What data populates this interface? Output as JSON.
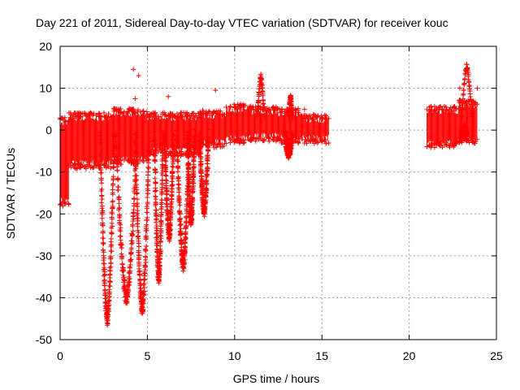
{
  "chart_data": {
    "type": "scatter",
    "title": "Day 221 of 2011, Sidereal Day-to-day VTEC variation (SDTVAR) for receiver kouc",
    "xlabel": "GPS time / hours",
    "ylabel": "SDTVAR / TECUs",
    "xlim": [
      0,
      25
    ],
    "ylim": [
      -50,
      20
    ],
    "xticks": [
      "0",
      "5",
      "10",
      "15",
      "20",
      "25"
    ],
    "yticks": [
      "-50",
      "-40",
      "-30",
      "-20",
      "-10",
      "0",
      "10",
      "20"
    ],
    "xtick_values": [
      0,
      5,
      10,
      15,
      20,
      25
    ],
    "ytick_values": [
      -50,
      -40,
      -30,
      -20,
      -10,
      0,
      10,
      20
    ],
    "grid": true,
    "marker": "+",
    "color": "#ff0000",
    "bands": [
      {
        "x0": 0.0,
        "x1": 0.5,
        "lo": -17,
        "hi": 2
      },
      {
        "x0": 0.5,
        "x1": 3.0,
        "lo": -8,
        "hi": 3
      },
      {
        "x0": 3.0,
        "x1": 5.0,
        "lo": -7,
        "hi": 4
      },
      {
        "x0": 5.0,
        "x1": 8.0,
        "lo": -5,
        "hi": 3
      },
      {
        "x0": 8.0,
        "x1": 9.5,
        "lo": -3,
        "hi": 3.5
      },
      {
        "x0": 9.5,
        "x1": 11.0,
        "lo": -2,
        "hi": 5
      },
      {
        "x0": 11.0,
        "x1": 12.5,
        "lo": -1.5,
        "hi": 4.5
      },
      {
        "x0": 12.5,
        "x1": 14.0,
        "lo": -2,
        "hi": 4
      },
      {
        "x0": 14.0,
        "x1": 15.4,
        "lo": -2,
        "hi": 2.5
      },
      {
        "x0": 21.0,
        "x1": 22.8,
        "lo": -3,
        "hi": 4.5
      },
      {
        "x0": 22.8,
        "x1": 23.9,
        "lo": -2,
        "hi": 6
      }
    ],
    "dips": [
      {
        "x0": 2.3,
        "x1": 3.1,
        "min": -46
      },
      {
        "x0": 3.2,
        "x1": 4.4,
        "min": -41
      },
      {
        "x0": 4.3,
        "x1": 5.1,
        "min": -43.5
      },
      {
        "x0": 5.4,
        "x1": 5.9,
        "min": -36
      },
      {
        "x0": 6.0,
        "x1": 6.5,
        "min": -26
      },
      {
        "x0": 6.7,
        "x1": 7.4,
        "min": -33
      },
      {
        "x0": 7.3,
        "x1": 7.7,
        "min": -22
      },
      {
        "x0": 8.0,
        "x1": 8.5,
        "min": -20
      },
      {
        "x0": 12.9,
        "x1": 13.3,
        "min": -6
      },
      {
        "x0": 23.0,
        "x1": 23.3,
        "min": -1
      }
    ],
    "peaks": [
      {
        "x0": 11.3,
        "x1": 11.7,
        "max": 13
      },
      {
        "x0": 13.1,
        "x1": 13.3,
        "max": 8
      },
      {
        "x0": 23.0,
        "x1": 23.6,
        "max": 15.5
      }
    ],
    "outliers": [
      {
        "x": 4.2,
        "y": 14.5
      },
      {
        "x": 4.5,
        "y": 13
      },
      {
        "x": 4.3,
        "y": 7.5
      },
      {
        "x": 6.2,
        "y": 8
      },
      {
        "x": 8.9,
        "y": 9.5
      },
      {
        "x": 11.5,
        "y": 11
      },
      {
        "x": 1.8,
        "y": 4
      },
      {
        "x": 0.6,
        "y": 3
      },
      {
        "x": 22.9,
        "y": 10
      },
      {
        "x": 23.9,
        "y": 10
      }
    ]
  }
}
